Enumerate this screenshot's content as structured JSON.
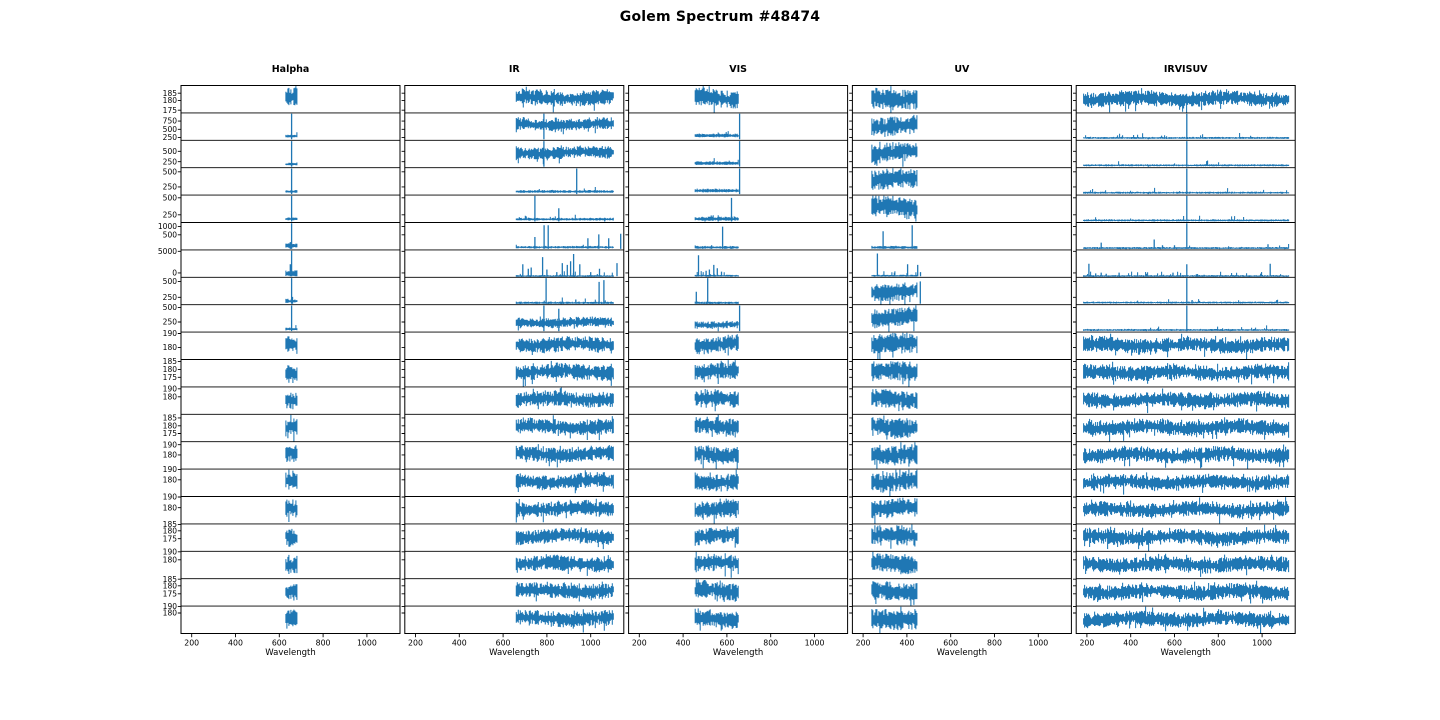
{
  "title": "Golem Spectrum #48474",
  "colors": {
    "line": "#1f77b4",
    "axis": "#000000",
    "text": "#000000",
    "background": "#ffffff"
  },
  "chart_data": {
    "type": "line",
    "title": "Golem Spectrum #48474",
    "grid": {
      "rows": 20,
      "columns": 5,
      "shared_x_per_column": true,
      "gridlines": false,
      "legend": "none"
    },
    "x": {
      "label": "Wavelength",
      "range": [
        151,
        1151
      ],
      "ticks": [
        "200",
        "400",
        "600",
        "800",
        "1000"
      ]
    },
    "columns": [
      {
        "label": "Halpha",
        "band": [
          630,
          683
        ],
        "default": {
          "center": 0.55,
          "amp": 0.32
        }
      },
      {
        "label": "IR",
        "band": [
          660,
          1105
        ],
        "default": {
          "center": 0.55,
          "amp": 0.27
        }
      },
      {
        "label": "VIS",
        "band": [
          455,
          655
        ],
        "default": {
          "center": 0.55,
          "amp": 0.31
        }
      },
      {
        "label": "UV",
        "band": [
          240,
          450
        ],
        "default": {
          "center": 0.55,
          "amp": 0.35
        }
      },
      {
        "label": "IRVISUV",
        "band": [
          185,
          1125
        ],
        "default": {
          "center": 0.52,
          "amp": 0.27
        }
      }
    ],
    "rows": [
      {
        "yticks": [
          [
            "185",
            0.28
          ],
          [
            "180",
            0.55
          ],
          [
            "175",
            0.9
          ]
        ],
        "cells": [
          null,
          null,
          null,
          null,
          null
        ]
      },
      {
        "yticks": [
          [
            "750",
            0.3
          ],
          [
            "500",
            0.6
          ],
          [
            "250",
            0.9
          ]
        ],
        "cells": [
          {
            "kind": "flat",
            "base": 0.14,
            "amp": 0.05,
            "spikes": [
              [
                656,
                1
              ]
            ]
          },
          {
            "kind": "band",
            "center": 0.58,
            "amp": 0.22,
            "spikes": [
              [
                786,
                1
              ]
            ]
          },
          {
            "kind": "flat",
            "base": 0.16,
            "amp": 0.07,
            "spikes": [
              [
                658,
                1
              ]
            ]
          },
          null,
          {
            "kind": "flat",
            "base": 0.08,
            "amp": 0.03,
            "spikes": [
              [
                480,
                0.1
              ],
              [
                656,
                1
              ]
            ]
          }
        ]
      },
      {
        "yticks": [
          [
            "500",
            0.4
          ],
          [
            "250",
            0.78
          ]
        ],
        "cells": [
          {
            "kind": "flat",
            "base": 0.12,
            "amp": 0.05,
            "spikes": [
              [
                656,
                1
              ]
            ]
          },
          {
            "kind": "band",
            "center": 0.55,
            "amp": 0.22,
            "spikes": [
              [
                786,
                1
              ]
            ]
          },
          {
            "kind": "flat",
            "base": 0.15,
            "amp": 0.07,
            "spikes": [
              [
                658,
                1
              ]
            ]
          },
          null,
          {
            "kind": "flat",
            "base": 0.08,
            "amp": 0.03,
            "spikes": [
              [
                480,
                0.1
              ],
              [
                656,
                1
              ]
            ]
          }
        ]
      },
      {
        "yticks": [
          [
            "500",
            0.15
          ],
          [
            "250",
            0.7
          ]
        ],
        "cells": [
          {
            "kind": "flat",
            "base": 0.12,
            "amp": 0.05,
            "spikes": [
              [
                656,
                1
              ]
            ]
          },
          {
            "kind": "flat",
            "base": 0.12,
            "amp": 0.05,
            "spikes": [
              [
                936,
                1
              ]
            ]
          },
          {
            "kind": "flat",
            "base": 0.15,
            "amp": 0.07,
            "spikes": [
              [
                658,
                1
              ]
            ]
          },
          null,
          {
            "kind": "flat",
            "base": 0.08,
            "amp": 0.03,
            "spikes": [
              [
                480,
                0.08
              ],
              [
                656,
                1
              ]
            ]
          }
        ]
      },
      {
        "yticks": [
          [
            "500",
            0.1
          ],
          [
            "250",
            0.72
          ]
        ],
        "cells": [
          {
            "kind": "flat",
            "base": 0.12,
            "amp": 0.05,
            "spikes": [
              [
                656,
                1
              ]
            ]
          },
          {
            "kind": "flat",
            "base": 0.11,
            "amp": 0.05,
            "spikes": [
              [
                745,
                1
              ],
              [
                854,
                0.55
              ],
              [
                1064,
                0.18
              ]
            ]
          },
          {
            "kind": "flat",
            "base": 0.12,
            "amp": 0.08,
            "spikes": [
              [
                500,
                0.12
              ],
              [
                560,
                0.12
              ],
              [
                621,
                0.95
              ]
            ]
          },
          null,
          {
            "kind": "flat",
            "base": 0.07,
            "amp": 0.03,
            "spikes": [
              [
                265,
                0.1
              ],
              [
                507,
                0.12
              ],
              [
                656,
                1
              ],
              [
                1027,
                0.1
              ]
            ]
          }
        ]
      },
      {
        "yticks": [
          [
            "1000",
            0.15
          ],
          [
            "500",
            0.45
          ]
        ],
        "cells": [
          {
            "kind": "flat",
            "base": 0.14,
            "amp": 0.1,
            "spikes": [
              [
                650,
                0.3
              ],
              [
                656,
                1
              ]
            ]
          },
          {
            "kind": "flat",
            "base": 0.09,
            "amp": 0.04,
            "spikes": [
              [
                745,
                0.5
              ],
              [
                787,
                0.95
              ],
              [
                806,
                0.95
              ],
              [
                987,
                0.45
              ],
              [
                1037,
                0.6
              ],
              [
                1082,
                0.45
              ],
              [
                1137,
                0.62
              ]
            ]
          },
          {
            "kind": "flat",
            "base": 0.08,
            "amp": 0.05,
            "spikes": [
              [
                490,
                0.12
              ],
              [
                530,
                0.18
              ],
              [
                580,
                0.9
              ],
              [
                620,
                0.12
              ]
            ]
          },
          {
            "kind": "flat",
            "base": 0.08,
            "amp": 0.05,
            "spikes": [
              [
                291,
                0.72
              ],
              [
                424,
                0.95
              ]
            ]
          },
          {
            "kind": "flat",
            "base": 0.06,
            "amp": 0.03,
            "spikes": [
              [
                265,
                0.28
              ],
              [
                507,
                0.4
              ],
              [
                545,
                0.18
              ],
              [
                600,
                0.18
              ],
              [
                656,
                1
              ],
              [
                790,
                0.1
              ],
              [
                1027,
                0.22
              ]
            ]
          }
        ]
      },
      {
        "yticks": [
          [
            "5000",
            0.05
          ],
          [
            "0",
            0.84
          ]
        ],
        "cells": [
          {
            "kind": "flat",
            "base": 0.12,
            "amp": 0.12,
            "spikes": [
              [
                650,
                0.5
              ],
              [
                656,
                1
              ]
            ]
          },
          {
            "kind": "spikes",
            "base": 0.04,
            "spikes": [
              [
                690,
                0.5
              ],
              [
                715,
                0.33
              ],
              [
                728,
                0.38
              ],
              [
                780,
                0.78
              ],
              [
                800,
                0.3
              ],
              [
                845,
                0.2
              ],
              [
                870,
                0.55
              ],
              [
                893,
                0.48
              ],
              [
                908,
                0.62
              ],
              [
                922,
                0.9
              ],
              [
                950,
                0.5
              ],
              [
                1000,
                0.2
              ],
              [
                1040,
                0.33
              ],
              [
                1120,
                0.55
              ]
            ]
          },
          {
            "kind": "spikes",
            "base": 0.05,
            "spikes": [
              [
                470,
                0.85
              ],
              [
                505,
                0.25
              ],
              [
                520,
                0.3
              ],
              [
                540,
                0.48
              ],
              [
                556,
                0.35
              ],
              [
                575,
                0.22
              ],
              [
                600,
                0.1
              ]
            ]
          },
          {
            "kind": "spikes",
            "base": 0.05,
            "spikes": [
              [
                265,
                0.92
              ],
              [
                343,
                0.18
              ],
              [
                403,
                0.5
              ],
              [
                449,
                0.48
              ],
              [
                462,
                0.2
              ]
            ]
          },
          {
            "kind": "spikes",
            "base": 0.04,
            "spikes": [
              [
                209,
                0.52
              ],
              [
                240,
                0.15
              ],
              [
                265,
                0.18
              ],
              [
                288,
                0.14
              ],
              [
                347,
                0.18
              ],
              [
                471,
                0.14
              ],
              [
                550,
                0.1
              ],
              [
                593,
                0.18
              ],
              [
                656,
                0.5
              ],
              [
                700,
                0.12
              ],
              [
                735,
                0.1
              ],
              [
                1037,
                0.52
              ]
            ]
          }
        ]
      },
      {
        "yticks": [
          [
            "500",
            0.15
          ],
          [
            "250",
            0.73
          ]
        ],
        "cells": [
          {
            "kind": "flat",
            "base": 0.12,
            "amp": 0.08,
            "spikes": [
              [
                656,
                1
              ],
              [
                660,
                0.3
              ]
            ]
          },
          {
            "kind": "flat",
            "base": 0.06,
            "amp": 0.04,
            "spikes": [
              [
                796,
                1
              ],
              [
                932,
                0.2
              ],
              [
                1038,
                0.88
              ],
              [
                1060,
                0.95
              ]
            ]
          },
          {
            "kind": "flat",
            "base": 0.06,
            "amp": 0.04,
            "spikes": [
              [
                460,
                0.5
              ],
              [
                512,
                1
              ]
            ]
          },
          {
            "kind": "band",
            "center": 0.5,
            "amp": 0.3,
            "spikes": [
              [
                461,
                0.9
              ]
            ]
          },
          {
            "kind": "flat",
            "base": 0.07,
            "amp": 0.03,
            "spikes": [
              [
                656,
                1
              ],
              [
                680,
                0.18
              ]
            ]
          }
        ]
      },
      {
        "yticks": [
          [
            "500",
            0.1
          ],
          [
            "250",
            0.63
          ]
        ],
        "cells": [
          {
            "kind": "flat",
            "base": 0.1,
            "amp": 0.05,
            "spikes": [
              [
                656,
                1
              ]
            ]
          },
          {
            "kind": "band",
            "center": 0.35,
            "amp": 0.18,
            "spikes": [
              [
                786,
                1
              ],
              [
                854,
                0.9
              ]
            ]
          },
          {
            "kind": "band",
            "center": 0.28,
            "amp": 0.14,
            "spikes": [
              [
                658,
                1
              ]
            ]
          },
          null,
          {
            "kind": "flat",
            "base": 0.07,
            "amp": 0.03,
            "spikes": [
              [
                471,
                0.1
              ],
              [
                656,
                1
              ],
              [
                854,
                0.1
              ]
            ]
          }
        ]
      },
      {
        "yticks": [
          [
            "190",
            0.05
          ],
          [
            "180",
            0.56
          ]
        ],
        "cells": [
          null,
          null,
          null,
          null,
          null
        ]
      },
      {
        "yticks": [
          [
            "185",
            0.07
          ],
          [
            "180",
            0.36
          ],
          [
            "175",
            0.65
          ]
        ],
        "cells": [
          null,
          null,
          null,
          null,
          null
        ]
      },
      {
        "yticks": [
          [
            "190",
            0.07
          ],
          [
            "180",
            0.36
          ]
        ],
        "cells": [
          null,
          null,
          null,
          null,
          null
        ]
      },
      {
        "yticks": [
          [
            "185",
            0.13
          ],
          [
            "180",
            0.42
          ],
          [
            "175",
            0.7
          ]
        ],
        "cells": [
          null,
          null,
          null,
          null,
          null
        ]
      },
      {
        "yticks": [
          [
            "190",
            0.11
          ],
          [
            "180",
            0.48
          ]
        ],
        "cells": [
          null,
          null,
          null,
          null,
          null
        ]
      },
      {
        "yticks": [
          [
            "190",
            0.02
          ],
          [
            "180",
            0.39
          ]
        ],
        "cells": [
          null,
          null,
          null,
          null,
          null
        ]
      },
      {
        "yticks": [
          [
            "190",
            0.02
          ],
          [
            "180",
            0.41
          ]
        ],
        "cells": [
          null,
          null,
          null,
          null,
          null
        ]
      },
      {
        "yticks": [
          [
            "185",
            0.02
          ],
          [
            "180",
            0.25
          ],
          [
            "175",
            0.54
          ]
        ],
        "cells": [
          null,
          null,
          null,
          null,
          null
        ]
      },
      {
        "yticks": [
          [
            "190",
            0.02
          ],
          [
            "180",
            0.31
          ]
        ],
        "cells": [
          null,
          null,
          null,
          null,
          null
        ]
      },
      {
        "yticks": [
          [
            "185",
            0.02
          ],
          [
            "180",
            0.26
          ],
          [
            "175",
            0.55
          ]
        ],
        "cells": [
          null,
          null,
          null,
          null,
          null
        ]
      },
      {
        "yticks": [
          [
            "190",
            0.02
          ],
          [
            "180",
            0.25
          ]
        ],
        "cells": [
          null,
          null,
          null,
          null,
          null
        ]
      }
    ]
  }
}
